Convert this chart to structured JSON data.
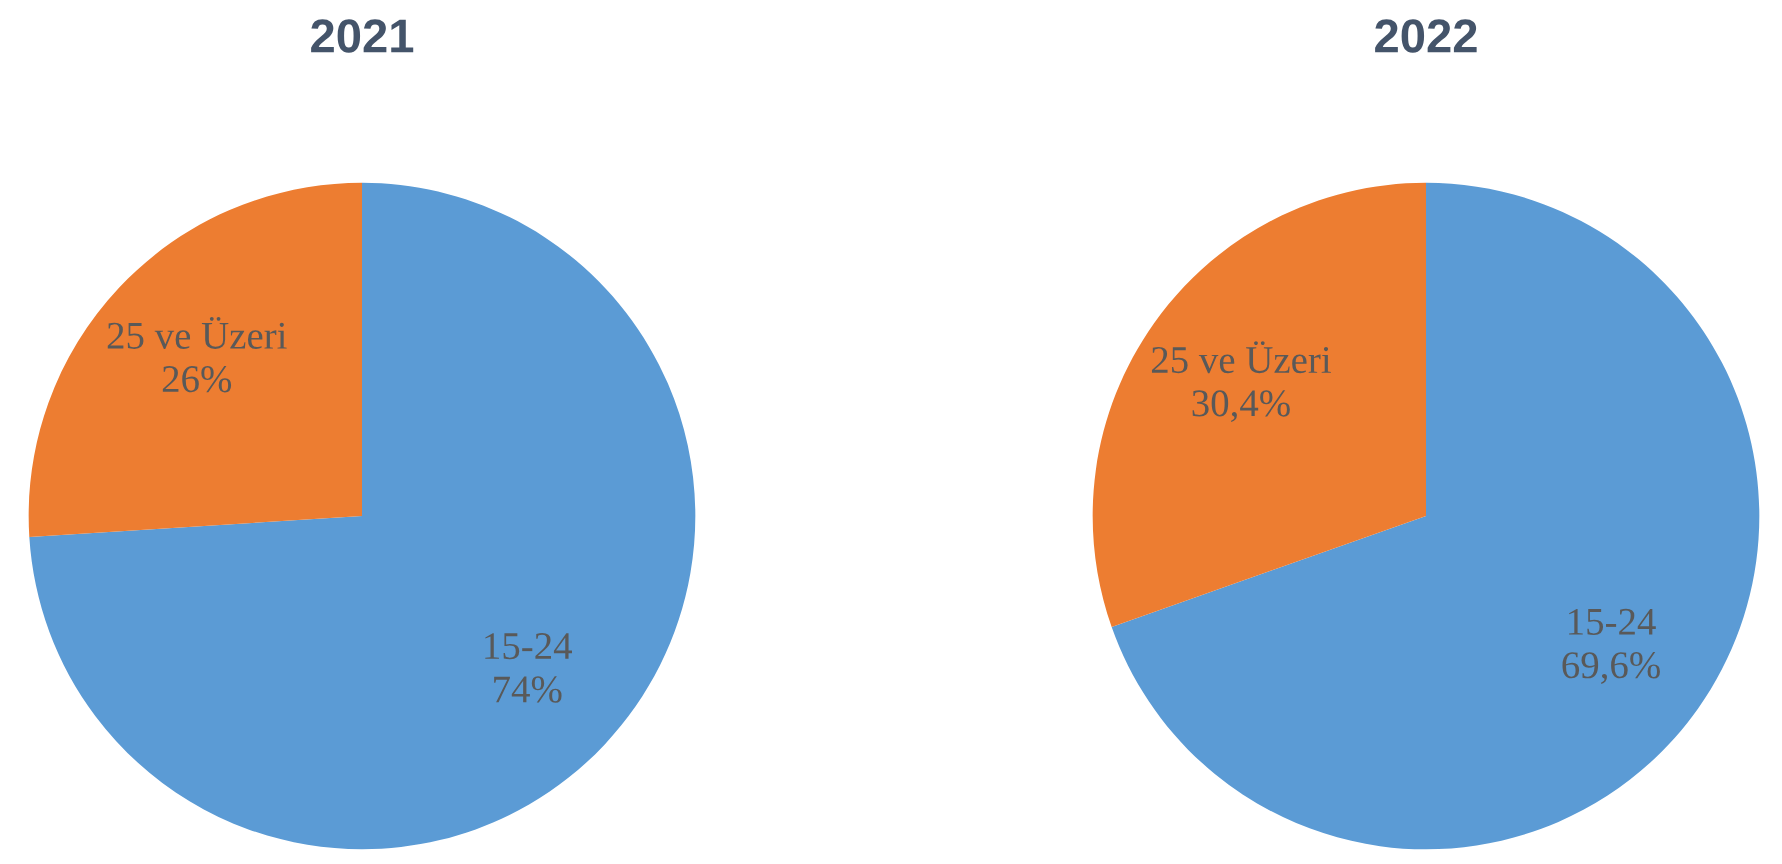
{
  "chart_data": [
    {
      "type": "pie",
      "title": "2021",
      "categories": [
        "15-24",
        "25 ve Üzeri"
      ],
      "values": [
        74,
        26
      ],
      "value_labels": [
        "74%",
        "26%"
      ],
      "colors": [
        "#5b9bd5",
        "#ed7d31"
      ]
    },
    {
      "type": "pie",
      "title": "2022",
      "categories": [
        "15-24",
        "25 ve Üzeri"
      ],
      "values": [
        69.6,
        30.4
      ],
      "value_labels": [
        "69,6%",
        "30,4%"
      ],
      "colors": [
        "#5b9bd5",
        "#ed7d31"
      ]
    }
  ]
}
